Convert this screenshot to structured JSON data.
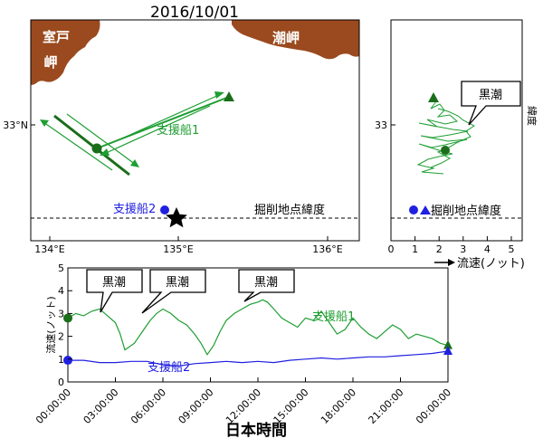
{
  "title": "2016/10/01",
  "colors": {
    "green": "#1e9e32",
    "dark_green": "#1a6e1a",
    "blue": "#2020e0",
    "land": "#9a4a1e",
    "black": "#000000"
  },
  "map": {
    "lon_ticks": [
      {
        "v": 134,
        "label": "134°E"
      },
      {
        "v": 135,
        "label": "135°E"
      },
      {
        "v": 136,
        "label": "136°E"
      }
    ],
    "lat_ticks": [
      {
        "v": 33,
        "label": "33°N"
      }
    ],
    "land_labels": {
      "muroto_1": "室戸",
      "muroto_2": "岬",
      "shiomisaki": "潮岬"
    },
    "vessel1_label": "支援船1",
    "vessel2_label": "支援船2",
    "drill_line_label": "掘削地点緯度",
    "drill_site_marker": "star"
  },
  "lat_panel": {
    "x_ticks": [
      0,
      1,
      2,
      3,
      4,
      5
    ],
    "y_ticks": [
      {
        "v": 33,
        "label": "33"
      }
    ],
    "ylabel": "緯度",
    "xlabel": "流速(ノット)",
    "callout": "黒潮",
    "drill_line_label": "掘削地点緯度"
  },
  "chart_data": {
    "type": "line",
    "xlabel": "日本時間",
    "ylabel": "流速(ノット)",
    "ylim": [
      0,
      5
    ],
    "y_ticks": [
      0,
      1,
      2,
      3,
      4,
      5
    ],
    "x_ticks": [
      "00:00:00",
      "03:00:00",
      "06:00:00",
      "09:00:00",
      "12:00:00",
      "15:00:00",
      "18:00:00",
      "21:00:00",
      "00:00:00"
    ],
    "xlim_hours": [
      0,
      24
    ],
    "callouts": [
      "黒潮",
      "黒潮",
      "黒潮"
    ],
    "series": [
      {
        "name": "支援船1",
        "color": "#1e9e32",
        "x": [
          0,
          0.5,
          1,
          1.5,
          2,
          2.5,
          3,
          3.3,
          3.6,
          4.2,
          4.8,
          5.2,
          5.6,
          6,
          6.5,
          7,
          7.5,
          8,
          8.4,
          8.8,
          9.2,
          9.6,
          10,
          10.5,
          11,
          11.5,
          12,
          12.3,
          12.6,
          13,
          13.5,
          14,
          14.5,
          15,
          15.5,
          16,
          16.5,
          17,
          17.5,
          18,
          18.5,
          19,
          19.5,
          20,
          20.5,
          21,
          21.5,
          22,
          22.5,
          23,
          23.5,
          24
        ],
        "y": [
          2.8,
          3.0,
          2.9,
          3.1,
          3.2,
          2.9,
          2.6,
          2.1,
          1.4,
          1.7,
          2.3,
          2.7,
          3.0,
          3.2,
          3.0,
          2.7,
          2.5,
          2.1,
          1.7,
          1.2,
          1.6,
          2.2,
          2.7,
          3.0,
          3.2,
          3.4,
          3.5,
          3.6,
          3.5,
          3.2,
          2.8,
          2.6,
          2.4,
          2.8,
          2.7,
          3.1,
          2.6,
          2.1,
          2.3,
          2.8,
          2.4,
          2.1,
          1.9,
          2.2,
          2.5,
          2.3,
          1.9,
          2.1,
          2.0,
          1.9,
          1.7,
          1.6
        ]
      },
      {
        "name": "支援船2",
        "color": "#2020e0",
        "x": [
          0,
          1,
          2,
          3,
          4,
          5,
          6,
          7,
          8,
          9,
          10,
          11,
          12,
          13,
          14,
          15,
          16,
          17,
          18,
          19,
          20,
          21,
          22,
          23,
          24
        ],
        "y": [
          0.95,
          0.95,
          0.85,
          0.85,
          0.9,
          0.9,
          0.75,
          0.7,
          0.8,
          0.85,
          0.9,
          0.85,
          0.9,
          0.85,
          0.95,
          1.0,
          1.05,
          1.0,
          1.05,
          1.1,
          1.1,
          1.15,
          1.2,
          1.25,
          1.35
        ]
      }
    ]
  }
}
